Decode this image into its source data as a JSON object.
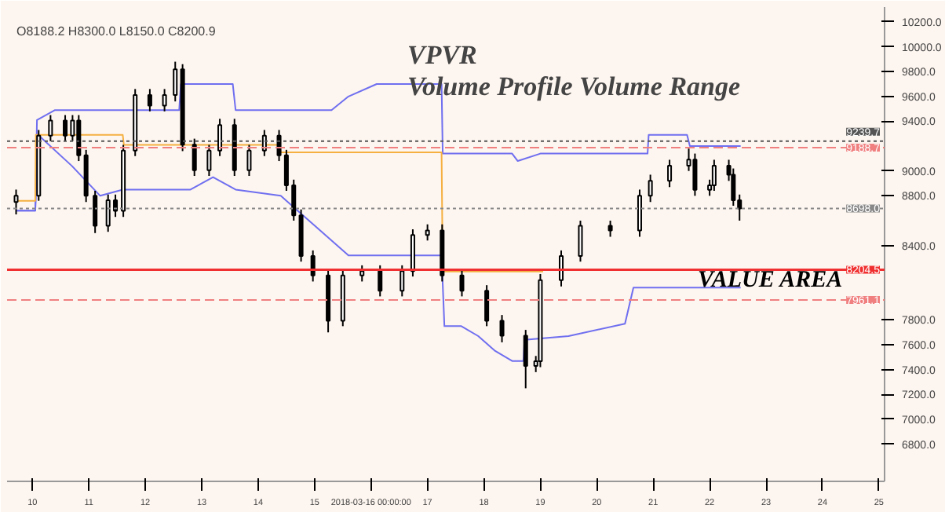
{
  "chart_data": {
    "type": "candlestick",
    "title": "VPVR",
    "subtitle": "Volume Profile Volume Range",
    "annotations": [
      "O8188.2 H8300.0 L8150.0 C8200.9",
      "VALUE AREA"
    ],
    "x": [
      9.71,
      10.11,
      10.32,
      10.58,
      10.71,
      10.82,
      10.95,
      11.11,
      11.34,
      11.47,
      11.61,
      11.82,
      12.08,
      12.34,
      12.53,
      12.66,
      12.87,
      13.13,
      13.32,
      13.58,
      13.84,
      14.11,
      14.37,
      14.5,
      14.63,
      14.76,
      14.97,
      15.24,
      15.5,
      15.84,
      16.16,
      16.55,
      16.74,
      17.0,
      17.26,
      17.61,
      18.05,
      18.32,
      18.74,
      18.92,
      19.0,
      19.37,
      19.71,
      20.24,
      20.76,
      20.95,
      21.29,
      21.63,
      21.74,
      22.0,
      22.08,
      22.34,
      22.42,
      22.53
    ],
    "ohlc": [
      [
        8750,
        8850,
        8650,
        8800
      ],
      [
        8800,
        9330,
        8760,
        9285
      ],
      [
        9285,
        9450,
        9240,
        9406
      ],
      [
        9406,
        9450,
        9240,
        9285
      ],
      [
        9285,
        9450,
        9240,
        9406
      ],
      [
        9406,
        9450,
        9080,
        9127
      ],
      [
        9127,
        9170,
        8750,
        8800
      ],
      [
        8800,
        8840,
        8500,
        8558
      ],
      [
        8558,
        8810,
        8510,
        8764
      ],
      [
        8764,
        8810,
        8630,
        8679
      ],
      [
        8679,
        9210,
        8630,
        9164
      ],
      [
        9164,
        9660,
        9120,
        9612
      ],
      [
        9612,
        9660,
        9480,
        9527
      ],
      [
        9527,
        9660,
        9480,
        9612
      ],
      [
        9612,
        9880,
        9560,
        9818
      ],
      [
        9818,
        9860,
        9160,
        9212
      ],
      [
        9212,
        9260,
        8960,
        9006
      ],
      [
        9006,
        9210,
        8960,
        9164
      ],
      [
        9164,
        9420,
        9120,
        9370
      ],
      [
        9370,
        9420,
        8960,
        9006
      ],
      [
        9006,
        9210,
        8960,
        9164
      ],
      [
        9164,
        9330,
        9120,
        9285
      ],
      [
        9285,
        9330,
        9080,
        9127
      ],
      [
        9127,
        9170,
        8840,
        8885
      ],
      [
        8885,
        8930,
        8600,
        8642
      ],
      [
        8642,
        8690,
        8270,
        8315
      ],
      [
        8315,
        8360,
        8110,
        8158
      ],
      [
        8158,
        8200,
        7700,
        7794
      ],
      [
        7794,
        8200,
        7750,
        8158
      ],
      [
        8158,
        8240,
        8110,
        8194
      ],
      [
        8194,
        8240,
        7990,
        8036
      ],
      [
        8036,
        8240,
        7990,
        8194
      ],
      [
        8194,
        8530,
        8150,
        8485
      ],
      [
        8485,
        8570,
        8440,
        8521
      ],
      [
        8521,
        8570,
        8110,
        8158
      ],
      [
        8158,
        8200,
        7990,
        8036
      ],
      [
        8036,
        8080,
        7750,
        7794
      ],
      [
        7794,
        7840,
        7620,
        7673
      ],
      [
        7673,
        7720,
        7250,
        7430
      ],
      [
        7430,
        7510,
        7380,
        7467
      ],
      [
        7467,
        8170,
        7420,
        8121
      ],
      [
        8121,
        8360,
        8070,
        8315
      ],
      [
        8315,
        8600,
        8270,
        8558
      ],
      [
        8558,
        8600,
        8470,
        8521
      ],
      [
        8521,
        8850,
        8470,
        8800
      ],
      [
        8800,
        8970,
        8750,
        8921
      ],
      [
        8921,
        9090,
        8870,
        9042
      ],
      [
        9042,
        9180,
        9000,
        9091
      ],
      [
        9091,
        9140,
        8800,
        8848
      ],
      [
        8848,
        8930,
        8800,
        8885
      ],
      [
        8885,
        9090,
        8840,
        9042
      ],
      [
        9042,
        9090,
        8920,
        8970
      ],
      [
        8970,
        9020,
        8720,
        8764
      ],
      [
        8764,
        8810,
        8600,
        8698
      ]
    ],
    "color": "#000000",
    "series": [
      {
        "type": "line",
        "color": "#6f6ff0",
        "x": [
          9.71,
          10.05,
          10.08,
          10.4,
          12.6,
          12.63,
          13.55,
          13.6,
          15.3,
          15.6,
          16.1,
          17.25,
          17.27,
          18.5,
          18.6,
          19.0,
          20.9,
          20.92,
          21.6,
          21.65,
          22.55
        ],
        "values": [
          8680,
          8680,
          9410,
          9490,
          9490,
          9700,
          9700,
          9490,
          9490,
          9600,
          9700,
          9700,
          9140,
          9140,
          9080,
          9140,
          9140,
          9290,
          9290,
          9200,
          9200
        ]
      },
      {
        "type": "line",
        "color": "#6f6ff0",
        "x": [
          9.71,
          10.05,
          10.1,
          10.7,
          11.2,
          11.6,
          12.8,
          13.2,
          13.6,
          14.4,
          15.0,
          15.6,
          17.25,
          17.3,
          17.6,
          17.9,
          18.2,
          18.5,
          18.7,
          18.72,
          19.5,
          20.5,
          20.65,
          22.55
        ],
        "values": [
          8680,
          8680,
          9290,
          9040,
          8800,
          8850,
          8850,
          8950,
          8850,
          8800,
          8560,
          8320,
          8320,
          7750,
          7750,
          7670,
          7550,
          7470,
          7470,
          7640,
          7670,
          7770,
          8060,
          8060
        ]
      },
      {
        "type": "line",
        "color": "#f5b041",
        "x": [
          9.71,
          10.05,
          10.06,
          11.6,
          11.62,
          14.37,
          14.4,
          17.25,
          17.27,
          19.05
        ],
        "values": [
          8760,
          8760,
          9290,
          9290,
          9210,
          9210,
          9150,
          9150,
          8190,
          8190
        ]
      }
    ],
    "ref_lines": [
      {
        "axis": "y",
        "value": 9239.7,
        "label": "9239.7",
        "color": "#555555",
        "line_style": "dotted"
      },
      {
        "axis": "y",
        "value": 9188.7,
        "label": "9188.7",
        "color": "#f08080",
        "line_style": "dashed"
      },
      {
        "axis": "y",
        "value": 8698.0,
        "label": "8698.0",
        "color": "#888888",
        "line_style": "dotted"
      },
      {
        "axis": "y",
        "value": 8204.5,
        "label": "8204.5",
        "color": "#f03030",
        "line_style": "solid"
      },
      {
        "axis": "y",
        "value": 7961.1,
        "label": "7961.1",
        "color": "#f08080",
        "line_style": "dashed"
      }
    ],
    "xlim": [
      9.55,
      25.1
    ],
    "xticks": [
      10,
      11,
      12,
      13,
      14,
      15,
      {
        "value": 16,
        "label": "2018-03-16 00:00:00"
      },
      17,
      18,
      19,
      20,
      21,
      22,
      23,
      24,
      25
    ],
    "ylim": [
      6500,
      10320
    ],
    "yticks": [
      {
        "value": 6800,
        "label": "6800.0"
      },
      {
        "value": 7000,
        "label": "7000.0"
      },
      {
        "value": 7200,
        "label": "7200.0"
      },
      {
        "value": 7400,
        "label": "7400.0"
      },
      {
        "value": 7600,
        "label": "7600.0"
      },
      {
        "value": 7800,
        "label": "7800.0"
      },
      {
        "value": 8400,
        "label": "8400.0"
      },
      {
        "value": 8800,
        "label": "8800.0"
      },
      {
        "value": 9000,
        "label": "9000.0"
      },
      {
        "value": 9400,
        "label": "9400.0"
      },
      {
        "value": 9600,
        "label": "9600.0"
      },
      {
        "value": 9800,
        "label": "9800.0"
      },
      {
        "value": 10000,
        "label": "10000.0"
      },
      {
        "value": 10200,
        "label": "10200.0"
      }
    ],
    "grid": false
  }
}
